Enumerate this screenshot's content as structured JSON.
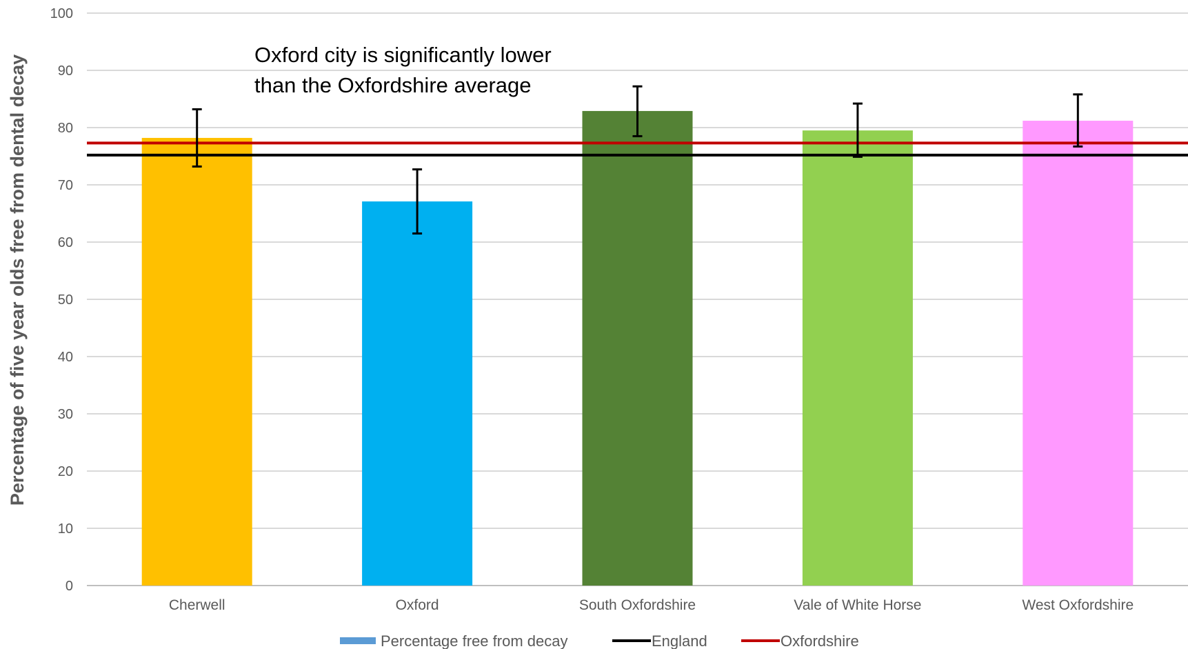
{
  "chart_data": {
    "type": "bar",
    "categories": [
      "Cherwell",
      "Oxford",
      "South Oxfordshire",
      "Vale of White Horse",
      "West Oxfordshire"
    ],
    "series": [
      {
        "name": "Percentage free from decay",
        "values": [
          78.2,
          67.1,
          82.9,
          79.5,
          81.2
        ],
        "ci_lower": [
          73.2,
          61.5,
          78.5,
          74.9,
          76.7
        ],
        "ci_upper": [
          83.2,
          72.7,
          87.2,
          84.2,
          85.8
        ],
        "bar_colors": [
          "#FFC000",
          "#00B0F0",
          "#548235",
          "#92D050",
          "#FF99FF"
        ],
        "legend_color": "#5B9BD5"
      }
    ],
    "reference_lines": [
      {
        "name": "England",
        "value": 75.2,
        "color": "#000000"
      },
      {
        "name": "Oxfordshire",
        "value": 77.3,
        "color": "#C00000"
      }
    ],
    "ylabel": "Percentage of five year olds free from dental decay",
    "xlabel": "",
    "ylim": [
      0,
      100
    ],
    "yticks": [
      0,
      10,
      20,
      30,
      40,
      50,
      60,
      70,
      80,
      90,
      100
    ],
    "grid": true,
    "legend_position": "bottom",
    "annotation": {
      "lines": [
        "Oxford city is significantly lower",
        "than the Oxfordshire average"
      ]
    }
  }
}
